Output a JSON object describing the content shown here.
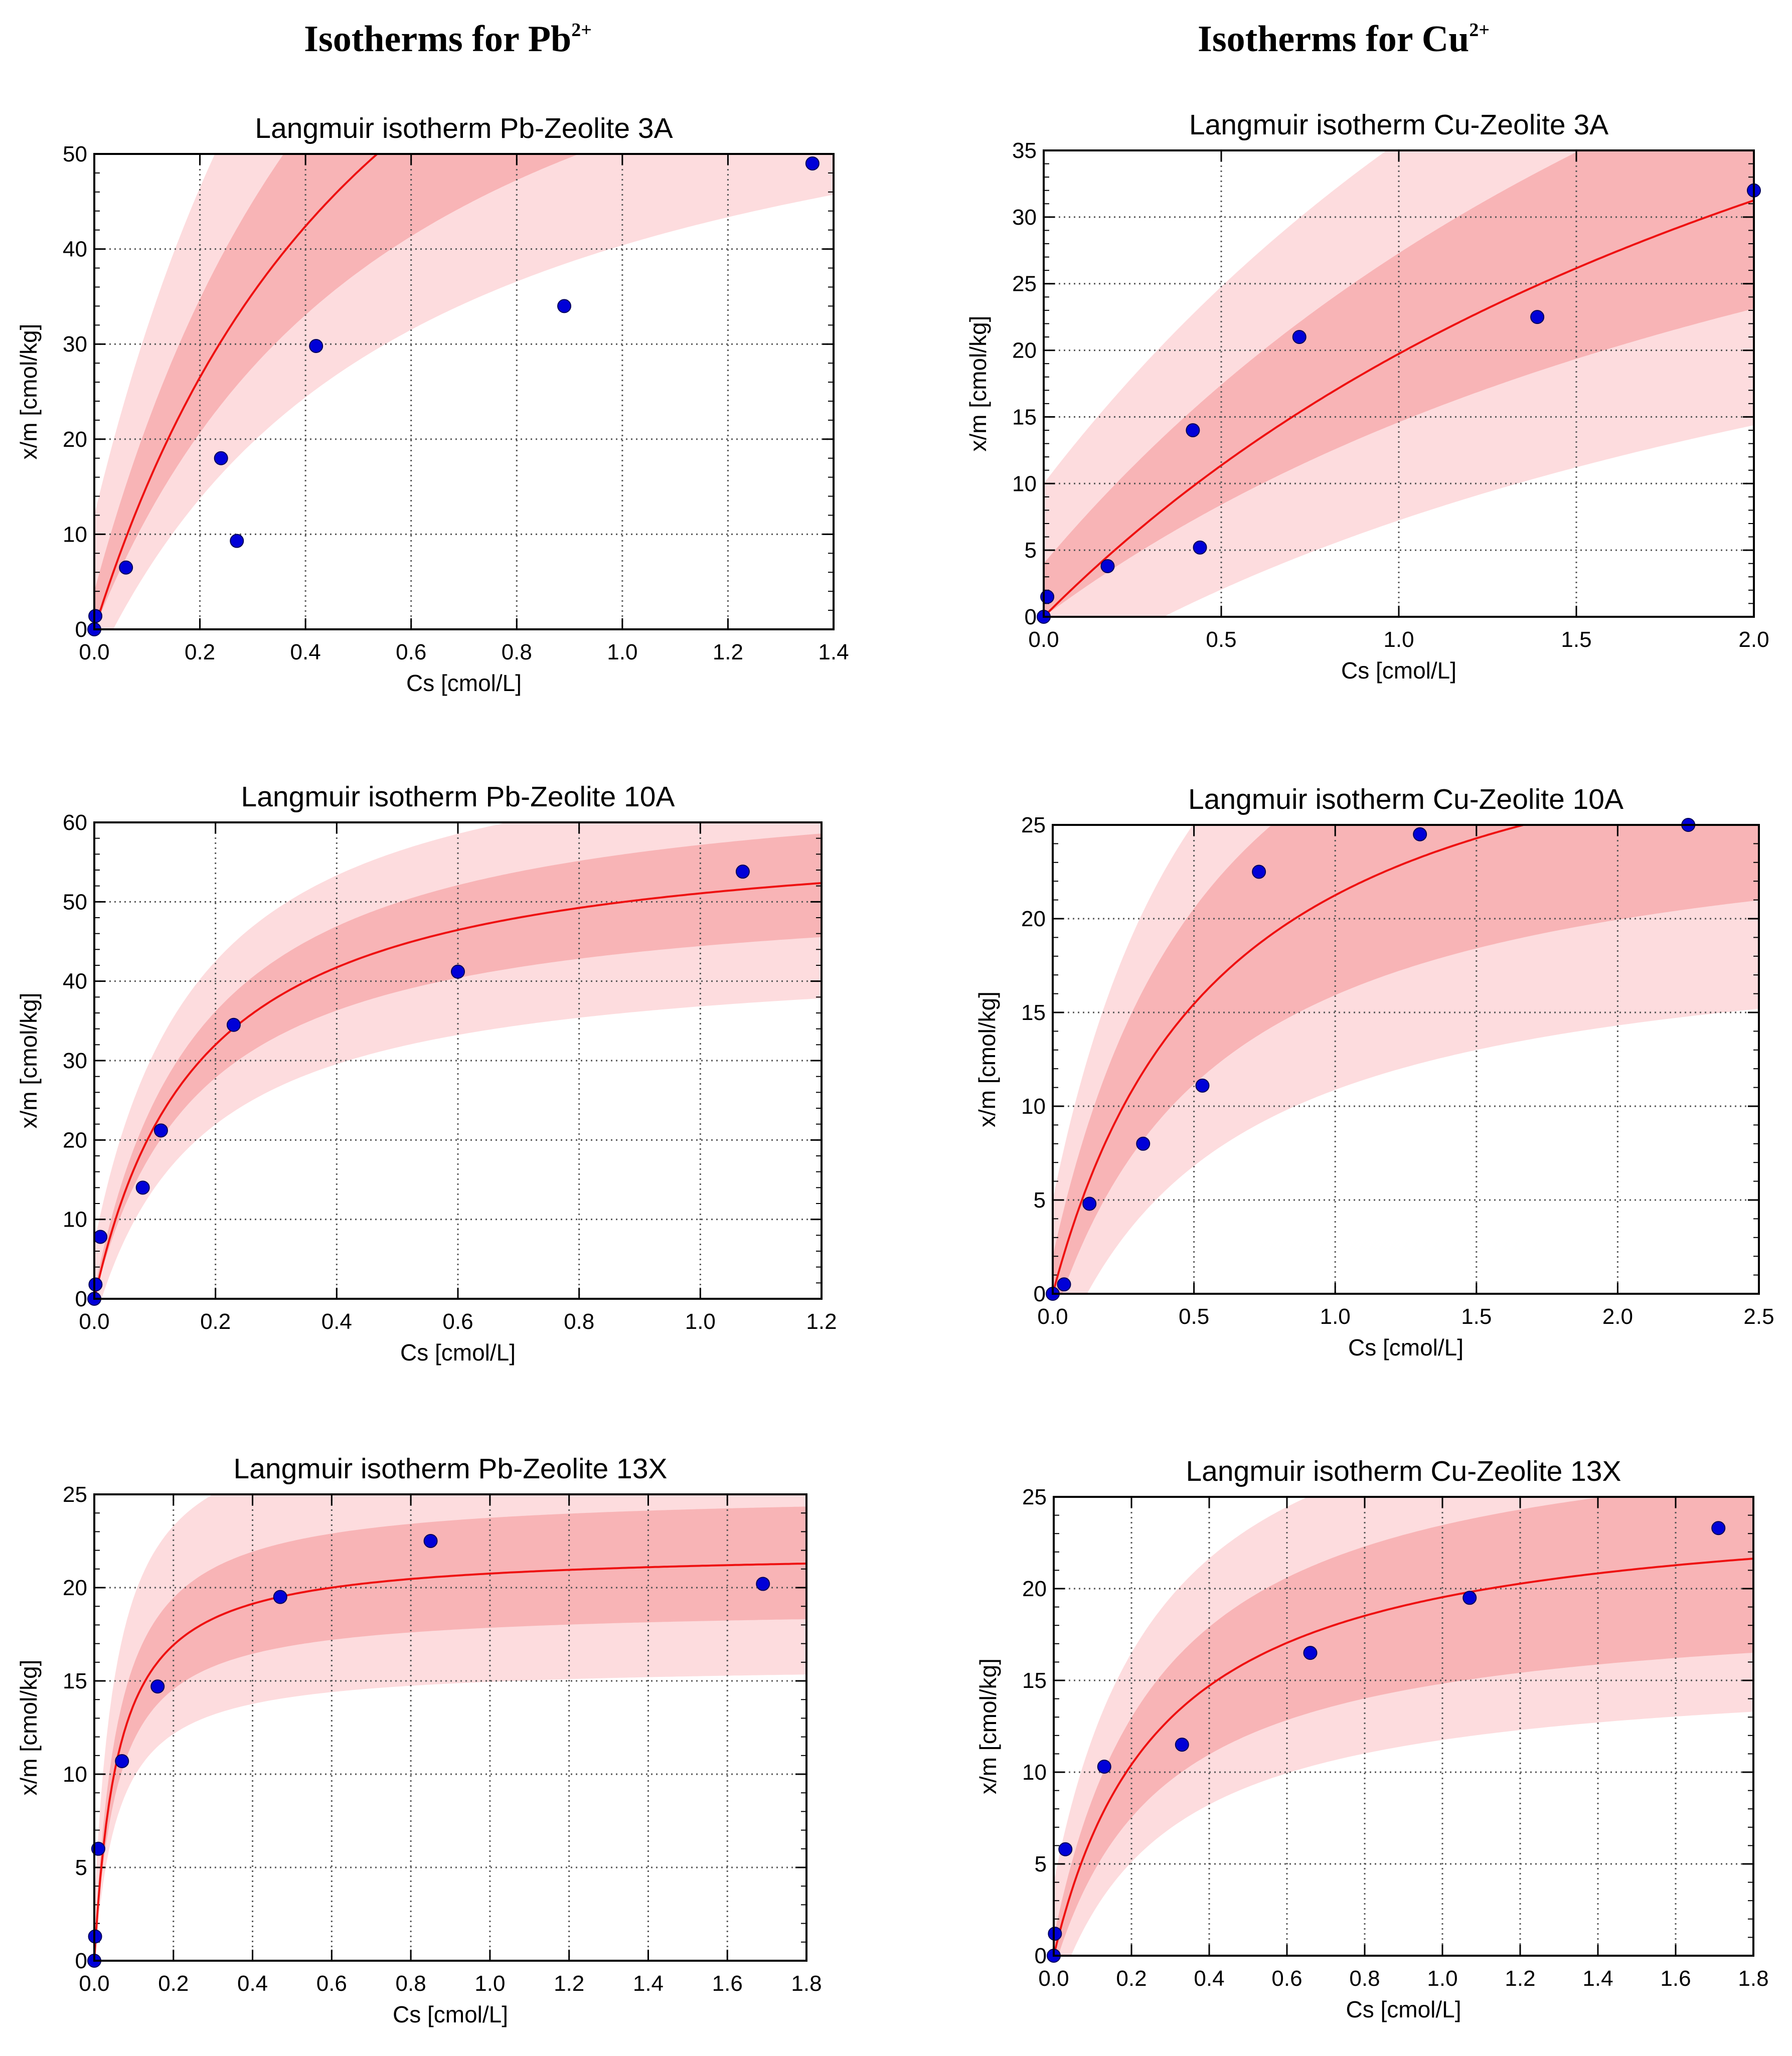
{
  "headings": {
    "left": {
      "text": "Isotherms for Pb",
      "sup": "2+"
    },
    "right": {
      "text": "Isotherms for Cu",
      "sup": "2+"
    }
  },
  "colors": {
    "fit_line": "#ee1111",
    "band_inner": "#f8b4b6",
    "band_outer": "#fddcde",
    "points": "#0000d8",
    "point_edge": "#00005a",
    "grid": "#555555"
  },
  "chart_data": [
    {
      "id": "pb-3a",
      "type": "scatter",
      "title": "Langmuir isotherm Pb-Zeolite 3A",
      "xlabel": "Cs [cmol/L]",
      "ylabel": "x/m [cmol/kg]",
      "xlim": [
        0,
        1.4
      ],
      "ylim": [
        0,
        50
      ],
      "xticks": [
        0,
        0.2,
        0.4,
        0.6,
        0.8,
        1.0,
        1.2,
        1.4
      ],
      "xticklabels": [
        "0.0",
        "0.2",
        "0.4",
        "0.6",
        "0.8",
        "1.0",
        "1.2",
        "1.4"
      ],
      "yticks": [
        0,
        10,
        20,
        30,
        40,
        50
      ],
      "yticklabels": [
        "0",
        "10",
        "20",
        "30",
        "40",
        "50"
      ],
      "points": [
        [
          0,
          0
        ],
        [
          0.002,
          1.4
        ],
        [
          0.06,
          6.5
        ],
        [
          0.24,
          18.0
        ],
        [
          0.27,
          9.3
        ],
        [
          0.42,
          29.8
        ],
        [
          0.89,
          34.0
        ],
        [
          1.36,
          49.0
        ]
      ],
      "fit": {
        "model": "langmuir",
        "qmax": 106,
        "K": 0.6
      },
      "band_inner": {
        "lower_scale": 0.78,
        "lower_offset": 0,
        "upper_scale": 1.16,
        "upper_offset": 4
      },
      "band_outer": {
        "lower_scale": 0.67,
        "lower_offset": -4,
        "upper_scale": 1.3,
        "upper_offset": 12
      }
    },
    {
      "id": "cu-3a",
      "type": "scatter",
      "title": "Langmuir isotherm Cu-Zeolite 3A",
      "xlabel": "Cs [cmol/L]",
      "ylabel": "x/m [cmol/kg]",
      "xlim": [
        0,
        2.0
      ],
      "ylim": [
        0,
        35
      ],
      "xticks": [
        0,
        0.5,
        1.0,
        1.5,
        2.0
      ],
      "xticklabels": [
        "0.0",
        "0.5",
        "1.0",
        "1.5",
        "2.0"
      ],
      "yticks": [
        0,
        5,
        10,
        15,
        20,
        25,
        30,
        35
      ],
      "yticklabels": [
        "0",
        "5",
        "10",
        "15",
        "20",
        "25",
        "30",
        "35"
      ],
      "points": [
        [
          0,
          0
        ],
        [
          0.01,
          1.5
        ],
        [
          0.18,
          3.8
        ],
        [
          0.42,
          14.0
        ],
        [
          0.44,
          5.2
        ],
        [
          0.72,
          21.0
        ],
        [
          1.39,
          22.5
        ],
        [
          2.0,
          32.0
        ]
      ],
      "fit": {
        "model": "langmuir",
        "qmax": 75,
        "K": 2.8
      },
      "band_inner": {
        "lower_scale": 0.74,
        "lower_offset": 0,
        "upper_scale": 1.18,
        "upper_offset": 4
      },
      "band_outer": {
        "lower_scale": 0.62,
        "lower_offset": -5,
        "upper_scale": 1.3,
        "upper_offset": 10
      }
    },
    {
      "id": "pb-10a",
      "type": "scatter",
      "title": "Langmuir isotherm Pb-Zeolite 10A",
      "xlabel": "Cs [cmol/L]",
      "ylabel": "x/m [cmol/kg]",
      "xlim": [
        0,
        1.2
      ],
      "ylim": [
        0,
        60
      ],
      "xticks": [
        0,
        0.2,
        0.4,
        0.6,
        0.8,
        1.0,
        1.2
      ],
      "xticklabels": [
        "0.0",
        "0.2",
        "0.4",
        "0.6",
        "0.8",
        "1.0",
        "1.2"
      ],
      "yticks": [
        0,
        10,
        20,
        30,
        40,
        50,
        60
      ],
      "yticklabels": [
        "0",
        "10",
        "20",
        "30",
        "40",
        "50",
        "60"
      ],
      "points": [
        [
          0,
          0
        ],
        [
          0.002,
          1.8
        ],
        [
          0.01,
          7.8
        ],
        [
          0.08,
          14.0
        ],
        [
          0.11,
          21.2
        ],
        [
          0.23,
          34.5
        ],
        [
          0.6,
          41.2
        ],
        [
          1.07,
          53.8
        ]
      ],
      "fit": {
        "model": "langmuir",
        "qmax": 60,
        "K": 0.175
      },
      "band_inner": {
        "lower_scale": 0.87,
        "lower_offset": 0,
        "upper_scale": 1.1,
        "upper_offset": 1
      },
      "band_outer": {
        "lower_scale": 0.78,
        "lower_offset": -3,
        "upper_scale": 1.11,
        "upper_offset": 7
      }
    },
    {
      "id": "cu-10a",
      "type": "scatter",
      "title": "Langmuir isotherm Cu-Zeolite 10A",
      "xlabel": "Cs [cmol/L]",
      "ylabel": "x/m [cmol/kg]",
      "xlim": [
        0,
        2.5
      ],
      "ylim": [
        0,
        25
      ],
      "xticks": [
        0,
        0.5,
        1.0,
        1.5,
        2.0,
        2.5
      ],
      "xticklabels": [
        "0.0",
        "0.5",
        "1.0",
        "1.5",
        "2.0",
        "2.5"
      ],
      "yticks": [
        0,
        5,
        10,
        15,
        20,
        25
      ],
      "yticklabels": [
        "0",
        "5",
        "10",
        "15",
        "20",
        "25"
      ],
      "points": [
        [
          0,
          0
        ],
        [
          0.04,
          0.5
        ],
        [
          0.13,
          4.8
        ],
        [
          0.32,
          8.0
        ],
        [
          0.53,
          11.1
        ],
        [
          0.73,
          22.5
        ],
        [
          1.3,
          24.5
        ],
        [
          2.25,
          25.0
        ]
      ],
      "fit": {
        "model": "langmuir",
        "qmax": 34,
        "K": 0.6
      },
      "band_inner": {
        "lower_scale": 0.82,
        "lower_offset": -1.5,
        "upper_scale": 1.2,
        "upper_offset": 2
      },
      "band_outer": {
        "lower_scale": 0.7,
        "lower_offset": -4,
        "upper_scale": 1.3,
        "upper_offset": 5
      }
    },
    {
      "id": "pb-13x",
      "type": "scatter",
      "title": "Langmuir isotherm Pb-Zeolite 13X",
      "xlabel": "Cs [cmol/L]",
      "ylabel": "x/m [cmol/kg]",
      "xlim": [
        0,
        1.8
      ],
      "ylim": [
        0,
        25
      ],
      "xticks": [
        0,
        0.2,
        0.4,
        0.6,
        0.8,
        1.0,
        1.2,
        1.4,
        1.6,
        1.8
      ],
      "xticklabels": [
        "0.0",
        "0.2",
        "0.4",
        "0.6",
        "0.8",
        "1.0",
        "1.2",
        "1.4",
        "1.6",
        "1.8"
      ],
      "yticks": [
        0,
        5,
        10,
        15,
        20,
        25
      ],
      "yticklabels": [
        "0",
        "5",
        "10",
        "15",
        "20",
        "25"
      ],
      "points": [
        [
          0,
          0
        ],
        [
          0.002,
          1.3
        ],
        [
          0.01,
          6.0
        ],
        [
          0.07,
          10.7
        ],
        [
          0.16,
          14.7
        ],
        [
          0.47,
          19.5
        ],
        [
          0.85,
          22.5
        ],
        [
          1.69,
          20.2
        ]
      ],
      "fit": {
        "model": "langmuir",
        "qmax": 22,
        "K": 0.06
      },
      "band_inner": {
        "lower_scale": 0.86,
        "lower_offset": 0,
        "upper_scale": 1.12,
        "upper_offset": 0.5
      },
      "band_outer": {
        "lower_scale": 0.73,
        "lower_offset": -0.2,
        "upper_scale": 1.2,
        "upper_offset": 3
      }
    },
    {
      "id": "cu-13x",
      "type": "scatter",
      "title": "Langmuir isotherm Cu-Zeolite 13X",
      "xlabel": "Cs [cmol/L]",
      "ylabel": "x/m [cmol/kg]",
      "xlim": [
        0,
        1.8
      ],
      "ylim": [
        0,
        25
      ],
      "xticks": [
        0,
        0.2,
        0.4,
        0.6,
        0.8,
        1.0,
        1.2,
        1.4,
        1.6,
        1.8
      ],
      "xticklabels": [
        "0.0",
        "0.2",
        "0.4",
        "0.6",
        "0.8",
        "1.0",
        "1.2",
        "1.4",
        "1.6",
        "1.8"
      ],
      "yticks": [
        0,
        5,
        10,
        15,
        20,
        25
      ],
      "yticklabels": [
        "0",
        "5",
        "10",
        "15",
        "20",
        "25"
      ],
      "points": [
        [
          0,
          0
        ],
        [
          0.003,
          1.2
        ],
        [
          0.03,
          5.8
        ],
        [
          0.13,
          10.3
        ],
        [
          0.33,
          11.5
        ],
        [
          0.66,
          16.5
        ],
        [
          1.07,
          19.5
        ],
        [
          1.71,
          23.3
        ]
      ],
      "fit": {
        "model": "langmuir",
        "qmax": 25,
        "K": 0.28
      },
      "band_inner": {
        "lower_scale": 0.8,
        "lower_offset": -0.8,
        "upper_scale": 1.15,
        "upper_offset": 1.0
      },
      "band_outer": {
        "lower_scale": 0.73,
        "lower_offset": -2.5,
        "upper_scale": 1.2,
        "upper_offset": 4
      }
    }
  ]
}
